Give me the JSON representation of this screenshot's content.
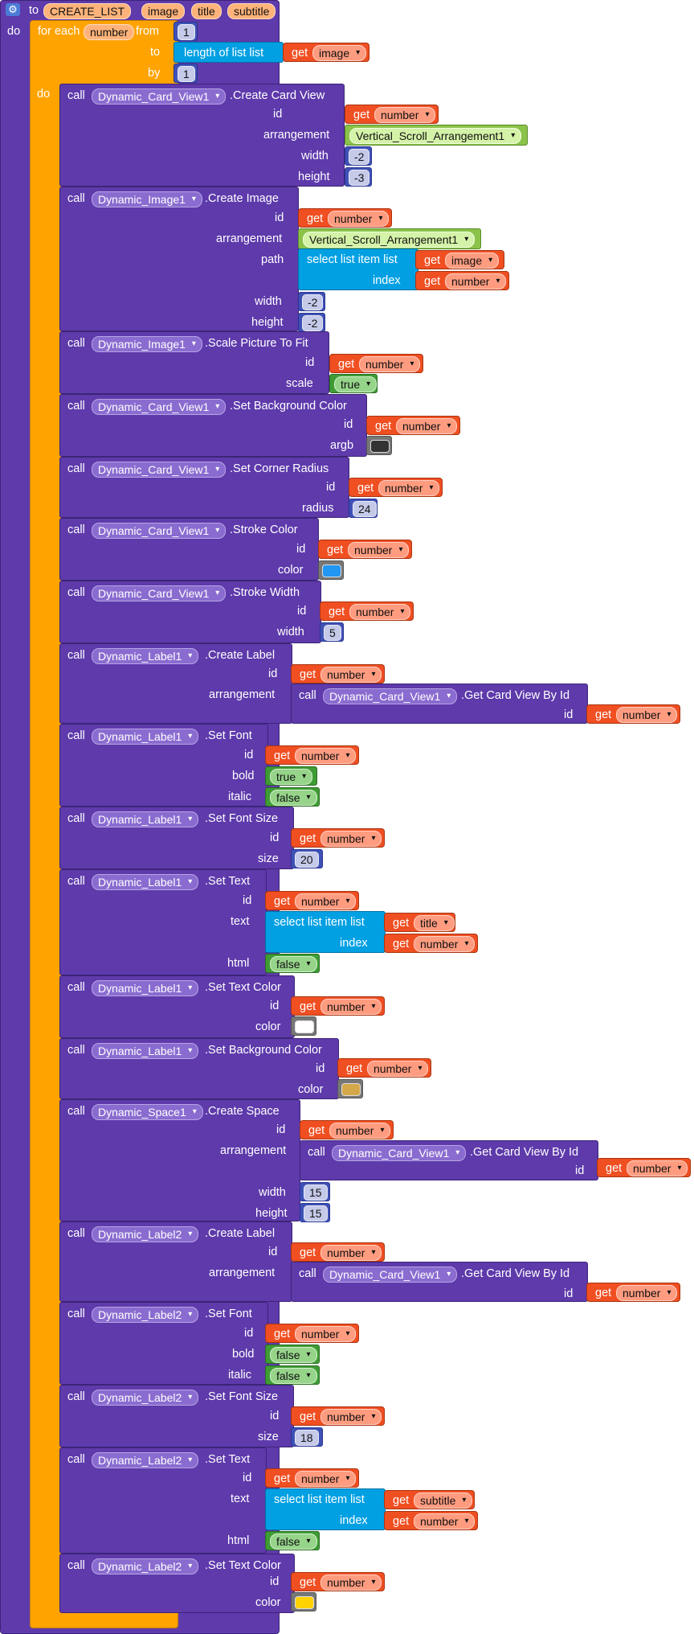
{
  "procedure": {
    "to_label": "to",
    "name": "CREATE_LIST",
    "params": [
      "image",
      "title",
      "subtitle"
    ],
    "do_label": "do"
  },
  "loop": {
    "for_each_label": "for each",
    "var": "number",
    "from_label": "from",
    "from_val": "1",
    "to_label": "to",
    "by_label": "by",
    "by_val": "1",
    "do_label": "do",
    "length_label": "length of list  list",
    "get_label": "get",
    "image_var": "image"
  },
  "kw": {
    "call": "call",
    "get": "get",
    "id": "id",
    "arrangement": "arrangement",
    "width": "width",
    "height": "height",
    "path": "path",
    "scale": "scale",
    "argb": "argb",
    "radius": "radius",
    "color": "color",
    "bold": "bold",
    "italic": "italic",
    "size": "size",
    "text": "text",
    "html": "html",
    "index": "index",
    "select_list": "select list item  list",
    "var_number": "number",
    "var_image": "image",
    "var_title": "title",
    "var_subtitle": "subtitle",
    "true": "true",
    "false": "false",
    "vsa": "Vertical_Scroll_Arrangement1"
  },
  "comps": {
    "card": "Dynamic_Card_View1",
    "image": "Dynamic_Image1",
    "label1": "Dynamic_Label1",
    "label2": "Dynamic_Label2",
    "space": "Dynamic_Space1"
  },
  "methods": {
    "create_card": ".Create Card View",
    "create_image": ".Create Image",
    "scale_pic": ".Scale Picture To Fit",
    "set_bg": ".Set Background Color",
    "set_corner": ".Set Corner Radius",
    "stroke_color": ".Stroke Color",
    "stroke_width": ".Stroke Width",
    "create_label": ".Create Label",
    "get_card": ".Get Card View By Id",
    "set_font": ".Set Font",
    "set_font_size": ".Set Font Size",
    "set_text": ".Set Text",
    "set_text_color": ".Set Text Color",
    "create_space": ".Create Space"
  },
  "nums": {
    "neg2": "-2",
    "neg3": "-3",
    "r24": "24",
    "w5": "5",
    "s20": "20",
    "sp15": "15",
    "s18": "18"
  },
  "colors": {
    "card_bg": "#333333",
    "stroke": "#2196f3",
    "label1_text": "#ffffff",
    "label1_bg": "#d4a84a",
    "label2_text": "#ffd200"
  }
}
